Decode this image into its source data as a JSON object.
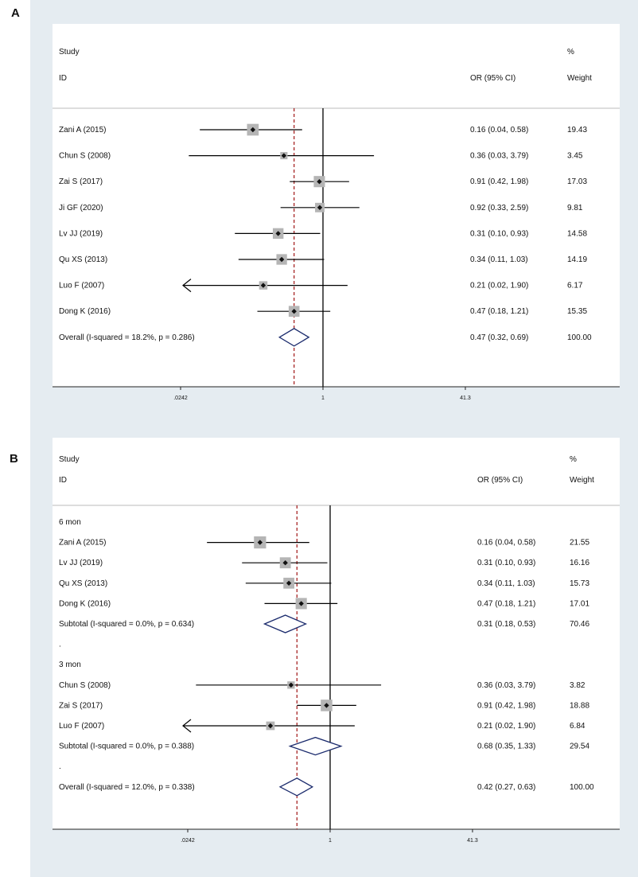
{
  "chart_data": [
    {
      "type": "forest",
      "panel_label": "A",
      "header": {
        "study": "Study",
        "id": "ID",
        "or_ci": "OR (95% CI)",
        "pct": "%",
        "weight": "Weight"
      },
      "x_axis": {
        "scale": "log",
        "ticks": [
          ".0242",
          "1",
          "41.3"
        ],
        "tick_values": [
          0.0242,
          1,
          41.3
        ],
        "null_line": 1
      },
      "pooled_estimate_line": 0.47,
      "rows": [
        {
          "kind": "study",
          "label": "Zani A (2015)",
          "or": 0.16,
          "lo": 0.04,
          "hi": 0.58,
          "ci_text": "0.16 (0.04, 0.58)",
          "weight": "19.43"
        },
        {
          "kind": "study",
          "label": "Chun S (2008)",
          "or": 0.36,
          "lo": 0.03,
          "hi": 3.79,
          "ci_text": "0.36 (0.03, 3.79)",
          "weight": "3.45"
        },
        {
          "kind": "study",
          "label": "Zai S (2017)",
          "or": 0.91,
          "lo": 0.42,
          "hi": 1.98,
          "ci_text": "0.91 (0.42, 1.98)",
          "weight": "17.03"
        },
        {
          "kind": "study",
          "label": "Ji GF (2020)",
          "or": 0.92,
          "lo": 0.33,
          "hi": 2.59,
          "ci_text": "0.92 (0.33, 2.59)",
          "weight": "9.81"
        },
        {
          "kind": "study",
          "label": "Lv JJ (2019)",
          "or": 0.31,
          "lo": 0.1,
          "hi": 0.93,
          "ci_text": "0.31 (0.10, 0.93)",
          "weight": "14.58"
        },
        {
          "kind": "study",
          "label": "Qu XS (2013)",
          "or": 0.34,
          "lo": 0.11,
          "hi": 1.03,
          "ci_text": "0.34 (0.11, 1.03)",
          "weight": "14.19"
        },
        {
          "kind": "study",
          "label": "Luo F (2007)",
          "or": 0.21,
          "lo": 0.02,
          "hi": 1.9,
          "ci_text": "0.21 (0.02, 1.90)",
          "weight": "6.17",
          "arrow_left": true
        },
        {
          "kind": "study",
          "label": "Dong K (2016)",
          "or": 0.47,
          "lo": 0.18,
          "hi": 1.21,
          "ci_text": "0.47 (0.18, 1.21)",
          "weight": "15.35"
        },
        {
          "kind": "overall",
          "label": "Overall  (I-squared = 18.2%, p = 0.286)",
          "or": 0.47,
          "lo": 0.32,
          "hi": 0.69,
          "ci_text": "0.47 (0.32, 0.69)",
          "weight": "100.00"
        }
      ]
    },
    {
      "type": "forest",
      "panel_label": "B",
      "header": {
        "study": "Study",
        "id": "ID",
        "or_ci": "OR (95% CI)",
        "pct": "%",
        "weight": "Weight"
      },
      "x_axis": {
        "scale": "log",
        "ticks": [
          ".0242",
          "1",
          "41.3"
        ],
        "tick_values": [
          0.0242,
          1,
          41.3
        ],
        "null_line": 1
      },
      "pooled_estimate_line": 0.42,
      "rows": [
        {
          "kind": "group",
          "label": "6 mon"
        },
        {
          "kind": "study",
          "label": "Zani A (2015)",
          "or": 0.16,
          "lo": 0.04,
          "hi": 0.58,
          "ci_text": "0.16 (0.04, 0.58)",
          "weight": "21.55"
        },
        {
          "kind": "study",
          "label": "Lv JJ (2019)",
          "or": 0.31,
          "lo": 0.1,
          "hi": 0.93,
          "ci_text": "0.31 (0.10, 0.93)",
          "weight": "16.16"
        },
        {
          "kind": "study",
          "label": "Qu XS (2013)",
          "or": 0.34,
          "lo": 0.11,
          "hi": 1.03,
          "ci_text": "0.34 (0.11, 1.03)",
          "weight": "15.73"
        },
        {
          "kind": "study",
          "label": "Dong K (2016)",
          "or": 0.47,
          "lo": 0.18,
          "hi": 1.21,
          "ci_text": "0.47 (0.18, 1.21)",
          "weight": "17.01"
        },
        {
          "kind": "subtotal",
          "label": "Subtotal  (I-squared = 0.0%, p = 0.634)",
          "or": 0.31,
          "lo": 0.18,
          "hi": 0.53,
          "ci_text": "0.31 (0.18, 0.53)",
          "weight": "70.46"
        },
        {
          "kind": "spacer",
          "label": "."
        },
        {
          "kind": "group",
          "label": "3 mon"
        },
        {
          "kind": "study",
          "label": "Chun S (2008)",
          "or": 0.36,
          "lo": 0.03,
          "hi": 3.79,
          "ci_text": "0.36 (0.03, 3.79)",
          "weight": "3.82"
        },
        {
          "kind": "study",
          "label": "Zai S (2017)",
          "or": 0.91,
          "lo": 0.42,
          "hi": 1.98,
          "ci_text": "0.91 (0.42, 1.98)",
          "weight": "18.88"
        },
        {
          "kind": "study",
          "label": "Luo F (2007)",
          "or": 0.21,
          "lo": 0.02,
          "hi": 1.9,
          "ci_text": "0.21 (0.02, 1.90)",
          "weight": "6.84",
          "arrow_left": true
        },
        {
          "kind": "subtotal",
          "label": "Subtotal  (I-squared = 0.0%, p = 0.388)",
          "or": 0.68,
          "lo": 0.35,
          "hi": 1.33,
          "ci_text": "0.68 (0.35, 1.33)",
          "weight": "29.54"
        },
        {
          "kind": "spacer",
          "label": "."
        },
        {
          "kind": "overall",
          "label": "Overall  (I-squared = 12.0%, p = 0.338)",
          "or": 0.42,
          "lo": 0.27,
          "hi": 0.63,
          "ci_text": "0.42 (0.27, 0.63)",
          "weight": "100.00"
        }
      ]
    }
  ],
  "colors": {
    "pooled_line": "#a01515",
    "diamond": "#1a2a6c",
    "weight_box": "#b5b5b5",
    "background": "#e5ecf1"
  }
}
